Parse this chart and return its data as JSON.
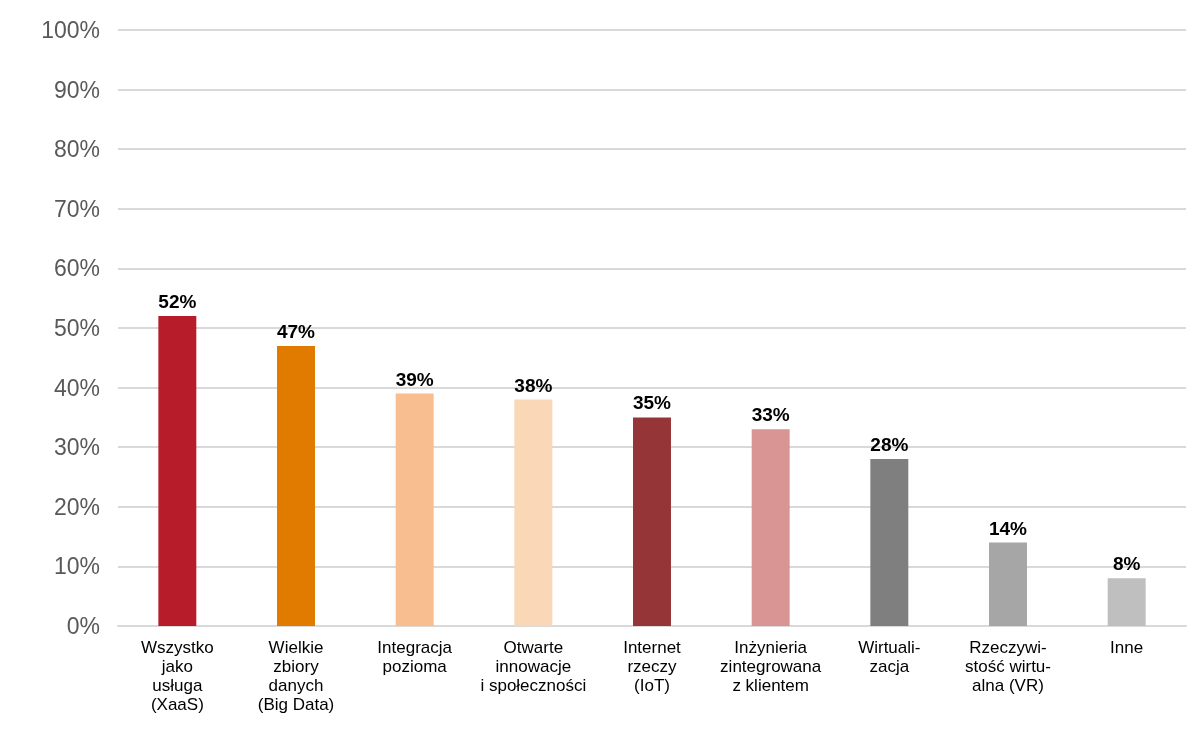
{
  "chart_data": {
    "type": "bar",
    "categories": [
      "Wszystko\njako\nusługa\n(XaaS)",
      "Wielkie\nzbiory\ndanych\n(Big Data)",
      "Integracja\npozioma",
      "Otwarte\ninnowacje\ni społeczności",
      "Internet\nrzeczy\n(IoT)",
      "Inżynieria\nzintegrowana\nz klientem",
      "Wirtuali-\nzacja",
      "Rzeczywi-\nstość wirtu-\nalna (VR)",
      "Inne"
    ],
    "values": [
      52,
      47,
      39,
      38,
      35,
      33,
      28,
      14,
      8
    ],
    "value_labels": [
      "52%",
      "47%",
      "39%",
      "38%",
      "35%",
      "33%",
      "28%",
      "14%",
      "8%"
    ],
    "colors": [
      "#b71c2b",
      "#e07b00",
      "#f8be8f",
      "#fad7b6",
      "#963537",
      "#d99494",
      "#7f7f7f",
      "#a6a6a6",
      "#bfbfbf"
    ],
    "ylim": [
      0,
      100
    ],
    "yticks": [
      {
        "value": 0,
        "label": "0%"
      },
      {
        "value": 10,
        "label": "10%"
      },
      {
        "value": 20,
        "label": "20%"
      },
      {
        "value": 30,
        "label": "30%"
      },
      {
        "value": 40,
        "label": "40%"
      },
      {
        "value": 50,
        "label": "50%"
      },
      {
        "value": 60,
        "label": "60%"
      },
      {
        "value": 70,
        "label": "70%"
      },
      {
        "value": 80,
        "label": "80%"
      },
      {
        "value": 90,
        "label": "90%"
      },
      {
        "value": 100,
        "label": "100%"
      }
    ],
    "grid": "y"
  }
}
